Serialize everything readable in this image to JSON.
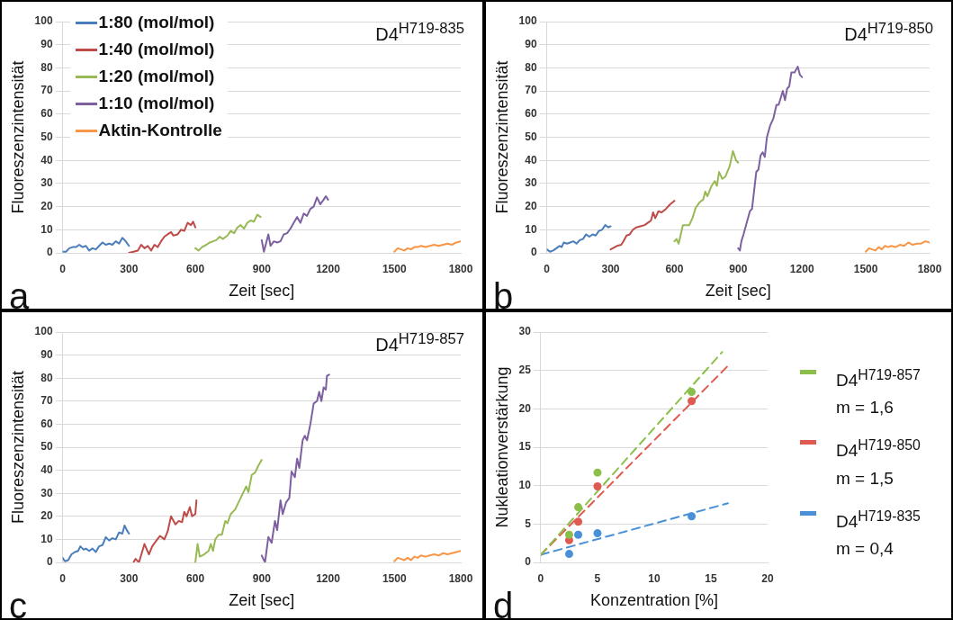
{
  "chart_data": [
    {
      "type": "line",
      "title": "D4$^{H719-835}$",
      "xlabel": "Zeit [sec]",
      "ylabel": "Fluoreszenzintensität",
      "annotations": [
        "a"
      ],
      "xlim": [
        0,
        1800
      ],
      "xticks": [
        0,
        300,
        600,
        900,
        1200,
        1500,
        1800
      ],
      "ylim": [
        0,
        100
      ],
      "yticks": [
        0,
        10,
        20,
        30,
        40,
        50,
        60,
        70,
        80,
        90,
        100
      ],
      "grid": "y",
      "legend": "top left",
      "marker": "none",
      "line_style": "solid",
      "series": [
        {
          "name": "1:80 (mol/mol)",
          "color": "#4a7ebb",
          "x": [
            0,
            15,
            30,
            45,
            60,
            75,
            90,
            105,
            120,
            135,
            150,
            165,
            180,
            195,
            210,
            225,
            240,
            255,
            270,
            285,
            300
          ],
          "values": [
            0.5,
            0.5,
            2,
            2.5,
            2.5,
            3.5,
            2.5,
            3,
            1,
            2,
            1.5,
            3,
            4.5,
            3.5,
            4,
            3.5,
            5,
            4,
            6.5,
            5,
            3
          ]
        },
        {
          "name": "1:40 (mol/mol)",
          "color": "#be4b48",
          "x": [
            300,
            320,
            340,
            355,
            370,
            385,
            400,
            415,
            430,
            445,
            460,
            475,
            490,
            500,
            520,
            535,
            550,
            565,
            580,
            590,
            600
          ],
          "values": [
            0,
            0.5,
            1,
            3.5,
            2,
            3,
            1,
            3.5,
            2.5,
            5,
            7,
            8,
            9,
            7.5,
            8,
            10,
            9.5,
            13,
            12,
            13.5,
            11
          ]
        },
        {
          "name": "1:20 (mol/mol)",
          "color": "#98b954",
          "x": [
            600,
            615,
            630,
            650,
            665,
            680,
            695,
            710,
            725,
            745,
            760,
            775,
            790,
            805,
            820,
            835,
            850,
            865,
            880,
            895
          ],
          "values": [
            2,
            1,
            2.5,
            3.5,
            4.5,
            5,
            5.5,
            7,
            6,
            7.5,
            9.5,
            8.5,
            11,
            12,
            10.5,
            13,
            14,
            13.5,
            16.5,
            15.5
          ]
        },
        {
          "name": "1:10 (mol/mol)",
          "color": "#7d60a0",
          "x": [
            900,
            910,
            930,
            940,
            955,
            970,
            985,
            1000,
            1015,
            1030,
            1045,
            1060,
            1075,
            1090,
            1105,
            1120,
            1135,
            1150,
            1165,
            1180,
            1190,
            1200
          ],
          "values": [
            5.5,
            0.5,
            8,
            3,
            5,
            4.5,
            5,
            8,
            8.5,
            10.5,
            13,
            15.5,
            13,
            17,
            16,
            19,
            20,
            24,
            21,
            23,
            24.5,
            23
          ]
        },
        {
          "name": "Aktin-Kontrolle",
          "color": "#f79646",
          "x": [
            1500,
            1515,
            1530,
            1545,
            1560,
            1575,
            1590,
            1605,
            1620,
            1640,
            1660,
            1680,
            1700,
            1720,
            1740,
            1760,
            1780,
            1800
          ],
          "values": [
            0.5,
            2,
            1.5,
            1,
            2,
            1.5,
            2.5,
            2.5,
            3,
            2.5,
            3,
            3.5,
            3,
            3.5,
            4,
            3.5,
            4.5,
            5
          ]
        }
      ]
    },
    {
      "type": "line",
      "title": "D4$^{H719-850}$",
      "xlabel": "Zeit [sec]",
      "ylabel": "Fluoreszenzintensität",
      "annotations": [
        "b"
      ],
      "xlim": [
        0,
        1800
      ],
      "xticks": [
        0,
        300,
        600,
        900,
        1200,
        1500,
        1800
      ],
      "ylim": [
        0,
        100
      ],
      "yticks": [
        0,
        10,
        20,
        30,
        40,
        50,
        60,
        70,
        80,
        90,
        100
      ],
      "grid": "y",
      "marker": "none",
      "line_style": "solid",
      "series": [
        {
          "color": "#4a7ebb",
          "x": [
            0,
            15,
            30,
            45,
            60,
            70,
            80,
            95,
            110,
            125,
            140,
            155,
            170,
            185,
            200,
            215,
            230,
            245,
            260,
            275,
            290,
            300
          ],
          "values": [
            1.5,
            0.5,
            1,
            2,
            3,
            2.5,
            4.5,
            4,
            4.5,
            5,
            4,
            5.5,
            6,
            8,
            7,
            8,
            7.5,
            9.5,
            10,
            12,
            11,
            11.5
          ]
        },
        {
          "color": "#be4b48",
          "x": [
            300,
            310,
            330,
            350,
            360,
            375,
            390,
            405,
            420,
            440,
            460,
            475,
            490,
            500,
            510,
            525,
            540,
            560,
            580,
            600
          ],
          "values": [
            1.5,
            2,
            3,
            3.5,
            5,
            7.5,
            8,
            10,
            11,
            11.5,
            12,
            13,
            14,
            17.5,
            15,
            18,
            17.5,
            19,
            21,
            22.5
          ]
        },
        {
          "color": "#98b954",
          "x": [
            600,
            610,
            620,
            630,
            640,
            655,
            670,
            685,
            700,
            720,
            735,
            745,
            755,
            775,
            790,
            800,
            810,
            825,
            840,
            860,
            875,
            890,
            900
          ],
          "values": [
            5,
            6,
            4,
            8,
            12,
            12,
            12,
            15,
            19.5,
            22,
            23,
            26.5,
            24.5,
            29,
            31,
            29,
            35,
            32,
            33,
            37.5,
            44,
            40,
            39
          ]
        },
        {
          "color": "#7d60a0",
          "x": [
            900,
            908,
            915,
            925,
            940,
            955,
            965,
            975,
            985,
            995,
            1005,
            1015,
            1025,
            1035,
            1050,
            1065,
            1080,
            1090,
            1100,
            1110,
            1120,
            1130,
            1140,
            1150,
            1165,
            1180,
            1190,
            1200
          ],
          "values": [
            2,
            1,
            5,
            8,
            13,
            18,
            19,
            27,
            35,
            36,
            42,
            43.5,
            41.5,
            50,
            55,
            58,
            64,
            64,
            67,
            70,
            66,
            71,
            72,
            78,
            78,
            80.5,
            77,
            76
          ]
        },
        {
          "color": "#f79646",
          "x": [
            1500,
            1515,
            1530,
            1545,
            1560,
            1575,
            1590,
            1605,
            1620,
            1640,
            1660,
            1680,
            1700,
            1720,
            1740,
            1760,
            1780,
            1800
          ],
          "values": [
            0.5,
            2,
            1.5,
            1,
            2.5,
            1.5,
            3,
            2.5,
            3,
            2.5,
            3.5,
            3,
            4.5,
            3.5,
            4,
            4,
            5,
            4.5
          ]
        }
      ]
    },
    {
      "type": "line",
      "title": "D4$^{H719-857}$",
      "xlabel": "Zeit [sec]",
      "ylabel": "Fluoreszenzintensität",
      "annotations": [
        "c"
      ],
      "xlim": [
        0,
        1800
      ],
      "xticks": [
        0,
        300,
        600,
        900,
        1200,
        1500,
        1800
      ],
      "ylim": [
        0,
        100
      ],
      "yticks": [
        0,
        10,
        20,
        30,
        40,
        50,
        60,
        70,
        80,
        90,
        100
      ],
      "grid": "y",
      "marker": "none",
      "line_style": "solid",
      "series": [
        {
          "color": "#4a7ebb",
          "x": [
            0,
            10,
            25,
            40,
            55,
            70,
            80,
            95,
            105,
            120,
            135,
            150,
            165,
            180,
            195,
            210,
            225,
            240,
            255,
            270,
            280,
            290,
            300
          ],
          "values": [
            2,
            0.5,
            1,
            3.5,
            4.5,
            5,
            7,
            5.5,
            6,
            5,
            6,
            4.5,
            7,
            7.5,
            11,
            9.5,
            10.5,
            10,
            13,
            12.5,
            16,
            14,
            12.5
          ]
        },
        {
          "color": "#be4b48",
          "x": [
            320,
            330,
            345,
            370,
            390,
            405,
            420,
            440,
            460,
            475,
            490,
            510,
            525,
            540,
            550,
            560,
            575,
            585,
            600,
            605
          ],
          "values": [
            0,
            1.5,
            0,
            8,
            3.5,
            7,
            9,
            11.5,
            10,
            13.5,
            20,
            16.5,
            18,
            17.5,
            22,
            20,
            24,
            20,
            21,
            27
          ]
        },
        {
          "color": "#98b954",
          "x": [
            600,
            610,
            620,
            640,
            660,
            670,
            680,
            690,
            705,
            720,
            735,
            745,
            760,
            780,
            800,
            820,
            830,
            840,
            855,
            870,
            885,
            900
          ],
          "values": [
            0,
            8,
            2.5,
            3.5,
            5,
            8,
            5,
            10,
            12,
            12,
            18,
            17,
            21,
            23,
            27,
            31,
            33,
            30.5,
            38,
            39,
            42,
            44.5
          ]
        },
        {
          "color": "#7d60a0",
          "x": [
            900,
            915,
            930,
            945,
            960,
            970,
            985,
            995,
            1010,
            1025,
            1035,
            1050,
            1060,
            1070,
            1085,
            1095,
            1105,
            1120,
            1135,
            1150,
            1160,
            1170,
            1180,
            1190,
            1195,
            1205
          ],
          "values": [
            3,
            0,
            11,
            8.5,
            18,
            14,
            27,
            21,
            26,
            28,
            39.5,
            37,
            45,
            41,
            53,
            55,
            53,
            60,
            69,
            70,
            74,
            70,
            76,
            75,
            81,
            81.5
          ]
        },
        {
          "color": "#f79646",
          "x": [
            1500,
            1515,
            1530,
            1545,
            1560,
            1575,
            1590,
            1605,
            1620,
            1640,
            1660,
            1680,
            1700,
            1720,
            1740,
            1760,
            1780,
            1800
          ],
          "values": [
            0.5,
            2,
            1.5,
            1,
            2,
            1,
            2.5,
            2,
            3,
            2.5,
            3,
            3.5,
            3,
            4,
            3.5,
            4,
            4.5,
            5
          ]
        }
      ]
    },
    {
      "type": "scatter",
      "xlabel": "Konzentration [%]",
      "ylabel": "Nukleationverstärkung",
      "annotations": [
        "d"
      ],
      "xlim": [
        0,
        20
      ],
      "xticks": [
        0,
        5,
        10,
        15,
        20
      ],
      "ylim": [
        0,
        30
      ],
      "yticks": [
        0,
        5,
        10,
        15,
        20,
        25,
        30
      ],
      "grid": "y",
      "legend": "right",
      "marker": "circle",
      "series": [
        {
          "name": "D4$^{H719-857}$\nm = 1,6",
          "color": "#8cbf4a",
          "x": [
            2.5,
            3.3,
            5,
            13.3
          ],
          "values": [
            3.6,
            7.2,
            11.7,
            22.2
          ]
        },
        {
          "name": "D4$^{H719-850}$\nm = 1,5",
          "color": "#df5a50",
          "x": [
            2.5,
            3.3,
            5,
            13.3
          ],
          "values": [
            2.9,
            5.3,
            9.9,
            21
          ]
        },
        {
          "name": "D4$^{H719-835}$\nm = 0,4",
          "color": "#4a90d9",
          "x": [
            2.5,
            3.3,
            5,
            13.3
          ],
          "values": [
            1.1,
            3.6,
            3.8,
            6
          ]
        },
        {
          "type": "line",
          "color": "#8cbf4a",
          "line_style": "dashed",
          "marker": "none",
          "x": [
            0,
            16
          ],
          "values": [
            1,
            27.4
          ]
        },
        {
          "type": "line",
          "color": "#df5a50",
          "line_style": "dashed",
          "marker": "none",
          "x": [
            0,
            16.5
          ],
          "values": [
            1,
            25.6
          ]
        },
        {
          "type": "line",
          "color": "#4a90d9",
          "line_style": "dashed",
          "marker": "none",
          "x": [
            0,
            16.5
          ],
          "values": [
            1,
            7.7
          ]
        }
      ]
    }
  ]
}
